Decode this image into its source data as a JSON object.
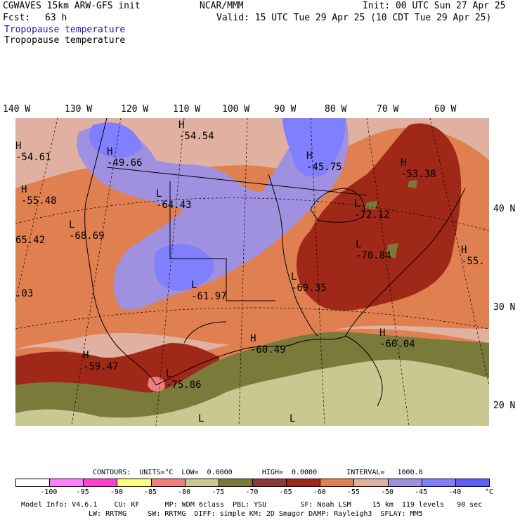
{
  "header": {
    "model": "CGWAVES 15km ARW-GFS init",
    "center": "NCAR/MMM",
    "init": "Init: 00 UTC Sun 27 Apr 25",
    "fcst_label": "Fcst:",
    "fcst_value": "63 h",
    "valid": "Valid: 15 UTC Tue 29 Apr 25 (10 CDT Tue 29 Apr 25)",
    "field_title_1": "Tropopause temperature",
    "field_title_2": "Tropopause temperature"
  },
  "axes": {
    "lon_labels": [
      "140 W",
      "130 W",
      "120 W",
      "110 W",
      "100 W",
      "90 W",
      "80 W",
      "70 W",
      "60 W"
    ],
    "lat_labels": [
      "40 N",
      "30 N",
      "20 N"
    ]
  },
  "map_labels": [
    {
      "kind": "H",
      "value": "-54.54"
    },
    {
      "kind": "H",
      "value": "-54.61"
    },
    {
      "kind": "H",
      "value": "-49.66"
    },
    {
      "kind": "H",
      "value": "-45.75"
    },
    {
      "kind": "H",
      "value": "-53.38"
    },
    {
      "kind": "H",
      "value": "-55.48"
    },
    {
      "kind": "L",
      "value": "-64.43"
    },
    {
      "kind": "L",
      "value": "-72.12"
    },
    {
      "kind": "L",
      "value": "-68.69"
    },
    {
      "kind": "",
      "value": "65.42"
    },
    {
      "kind": "L",
      "value": "-70.84"
    },
    {
      "kind": "H",
      "value": "-55."
    },
    {
      "kind": "",
      "value": ".03"
    },
    {
      "kind": "L",
      "value": "-61.97"
    },
    {
      "kind": "L",
      "value": "-69.35"
    },
    {
      "kind": "H",
      "value": "-60.49"
    },
    {
      "kind": "H",
      "value": "-60.04"
    },
    {
      "kind": "H",
      "value": "-59.47"
    },
    {
      "kind": "L",
      "value": "-75.86"
    },
    {
      "kind": "L",
      "value": ""
    },
    {
      "kind": "L",
      "value": ""
    }
  ],
  "colorbar": {
    "contours_line": "CONTOURS:  UNITS=°C  LOW=  0.0000       HIGH=  0.0000       INTERVAL=   1000.0",
    "colors": [
      "#ffffff",
      "#ff80ff",
      "#ff40d0",
      "#ffff80",
      "#f08080",
      "#c8c890",
      "#7a7a3a",
      "#8b3a3a",
      "#a02818",
      "#e08050",
      "#e0b0a0",
      "#a090e0",
      "#8080ff",
      "#6060f8"
    ],
    "tick_labels": [
      "-100",
      "-95",
      "-90",
      "-85",
      "-80",
      "-75",
      "-70",
      "-65",
      "-60",
      "-55",
      "-50",
      "-45",
      "-40"
    ],
    "unit": "°C"
  },
  "footer": {
    "line1": "Model Info: V4.6.1    CU: KF      MP: WDM 6class  PBL: YSU        SF: Noah LSM     15 km  119 levels   90 sec",
    "line2": "LW: RRTMG     SW: RRTMG  DIFF: simple KM: 2D Smagor DAMP: Rayleigh3  SFLAY: MM5"
  }
}
